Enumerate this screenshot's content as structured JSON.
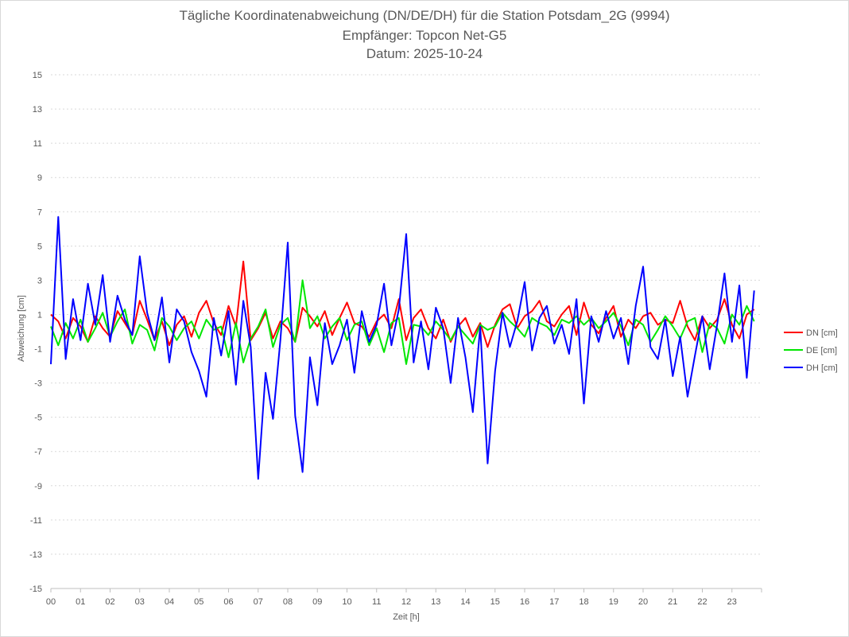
{
  "chart_data": {
    "type": "line",
    "title": "Tägliche Koordinatenabweichung (DN/DE/DH) für die Station Potsdam_2G (9994)",
    "subtitle_receiver": "Empfänger: Topcon Net-G5",
    "subtitle_date": "Datum: 2025-10-24",
    "xlabel": "Zeit [h]",
    "ylabel": "Abweichung [cm]",
    "xlim": [
      0,
      24
    ],
    "ylim": [
      -15,
      15
    ],
    "x_ticks": [
      "00",
      "01",
      "02",
      "03",
      "04",
      "05",
      "06",
      "07",
      "08",
      "09",
      "10",
      "11",
      "12",
      "13",
      "14",
      "15",
      "16",
      "17",
      "18",
      "19",
      "20",
      "21",
      "22",
      "23"
    ],
    "y_ticks": [
      "15",
      "13",
      "11",
      "9",
      "7",
      "5",
      "3",
      "1",
      "-1",
      "-3",
      "-5",
      "-7",
      "-9",
      "-11",
      "-13",
      "-15"
    ],
    "grid": true,
    "legend_position": "right",
    "x": [
      0,
      0.25,
      0.5,
      0.75,
      1,
      1.25,
      1.5,
      1.75,
      2,
      2.25,
      2.5,
      2.75,
      3,
      3.25,
      3.5,
      3.75,
      4,
      4.25,
      4.5,
      4.75,
      5,
      5.25,
      5.5,
      5.75,
      6,
      6.25,
      6.5,
      6.75,
      7,
      7.25,
      7.5,
      7.75,
      8,
      8.25,
      8.5,
      8.75,
      9,
      9.25,
      9.5,
      9.75,
      10,
      10.25,
      10.5,
      10.75,
      11,
      11.25,
      11.5,
      11.75,
      12,
      12.25,
      12.5,
      12.75,
      13,
      13.25,
      13.5,
      13.75,
      14,
      14.25,
      14.5,
      14.75,
      15,
      15.25,
      15.5,
      15.75,
      16,
      16.25,
      16.5,
      16.75,
      17,
      17.25,
      17.5,
      17.75,
      18,
      18.25,
      18.5,
      18.75,
      19,
      19.25,
      19.5,
      19.75,
      20,
      20.25,
      20.5,
      20.75,
      21,
      21.25,
      21.5,
      21.75,
      22,
      22.25,
      22.5,
      22.75,
      23,
      23.25,
      23.5,
      23.75
    ],
    "series": [
      {
        "name": "DN [cm]",
        "color": "#ff0000",
        "values": [
          1.0,
          0.6,
          -0.4,
          0.8,
          0.3,
          -0.6,
          0.9,
          0.2,
          -0.3,
          1.2,
          0.5,
          -0.2,
          1.8,
          0.7,
          -0.5,
          0.6,
          -0.8,
          0.4,
          0.9,
          -0.3,
          1.1,
          1.8,
          0.5,
          -0.2,
          1.5,
          0.3,
          4.1,
          -0.5,
          0.2,
          1.1,
          -0.4,
          0.6,
          0.2,
          -0.6,
          1.4,
          0.9,
          0.3,
          1.2,
          -0.2,
          0.8,
          1.7,
          0.5,
          0.3,
          -0.3,
          0.6,
          1.0,
          0.2,
          1.9,
          -0.5,
          0.8,
          1.3,
          0.2,
          -0.4,
          0.7,
          -0.6,
          0.3,
          0.8,
          -0.3,
          0.5,
          -0.9,
          0.4,
          1.3,
          1.6,
          0.2,
          0.9,
          1.2,
          1.8,
          0.6,
          0.3,
          1.0,
          1.5,
          -0.2,
          1.7,
          0.4,
          -0.1,
          0.8,
          1.5,
          -0.3,
          0.7,
          0.2,
          0.9,
          1.1,
          0.4,
          0.7,
          0.5,
          1.8,
          0.3,
          -0.5,
          0.9,
          0.2,
          0.7,
          1.9,
          0.4,
          -0.4,
          1.0,
          1.3
        ]
      },
      {
        "name": "DE [cm]",
        "color": "#00e600",
        "values": [
          0.3,
          -0.8,
          0.5,
          -0.4,
          0.7,
          -0.6,
          0.2,
          1.1,
          -0.3,
          0.6,
          1.3,
          -0.7,
          0.4,
          0.1,
          -1.1,
          0.8,
          0.3,
          -0.5,
          0.2,
          0.6,
          -0.4,
          0.7,
          0.1,
          0.3,
          -1.5,
          0.5,
          -1.8,
          -0.4,
          0.3,
          1.3,
          -0.9,
          0.4,
          0.8,
          -0.6,
          3.0,
          0.2,
          0.9,
          -0.4,
          0.3,
          0.8,
          -0.5,
          0.4,
          0.6,
          -0.8,
          0.2,
          -1.2,
          0.5,
          0.8,
          -1.9,
          0.4,
          0.3,
          -0.2,
          0.6,
          0.1,
          -0.5,
          0.3,
          -0.2,
          -0.7,
          0.4,
          0.1,
          0.3,
          1.1,
          0.6,
          0.2,
          -0.3,
          0.8,
          0.5,
          0.3,
          -0.2,
          0.7,
          0.5,
          0.9,
          0.4,
          0.8,
          0.2,
          0.6,
          1.1,
          0.3,
          -0.8,
          0.7,
          0.4,
          -0.6,
          0.1,
          0.9,
          0.3,
          -0.4,
          0.6,
          0.8,
          -1.2,
          0.5,
          0.2,
          -0.7,
          1.0,
          0.4,
          1.5,
          0.6
        ]
      },
      {
        "name": "DH [cm]",
        "color": "#0000ff",
        "values": [
          -1.9,
          6.7,
          -1.6,
          1.9,
          -0.5,
          2.8,
          0.4,
          3.3,
          -0.6,
          2.1,
          0.7,
          -0.2,
          4.4,
          1.1,
          -0.5,
          2.0,
          -1.8,
          1.3,
          0.6,
          -1.2,
          -2.3,
          -3.8,
          0.8,
          -1.4,
          1.2,
          -3.1,
          1.8,
          -0.9,
          -8.6,
          -2.4,
          -5.1,
          -0.5,
          5.2,
          -4.9,
          -8.2,
          -1.5,
          -4.3,
          0.5,
          -1.9,
          -0.8,
          0.7,
          -2.4,
          1.2,
          -0.6,
          0.4,
          2.8,
          -0.8,
          1.3,
          5.7,
          -1.8,
          0.6,
          -2.2,
          1.4,
          0.2,
          -3.0,
          0.8,
          -1.5,
          -4.7,
          0.3,
          -7.7,
          -2.3,
          1.1,
          -0.9,
          0.6,
          2.9,
          -1.1,
          0.8,
          1.5,
          -0.7,
          0.4,
          -1.3,
          1.9,
          -4.2,
          0.9,
          -0.6,
          1.2,
          -0.4,
          0.8,
          -1.9,
          1.5,
          3.8,
          -0.9,
          -1.6,
          0.7,
          -2.6,
          -0.3,
          -3.8,
          -1.4,
          0.9,
          -2.2,
          0.4,
          3.4,
          -0.6,
          2.7,
          -2.7,
          2.4
        ]
      }
    ]
  }
}
